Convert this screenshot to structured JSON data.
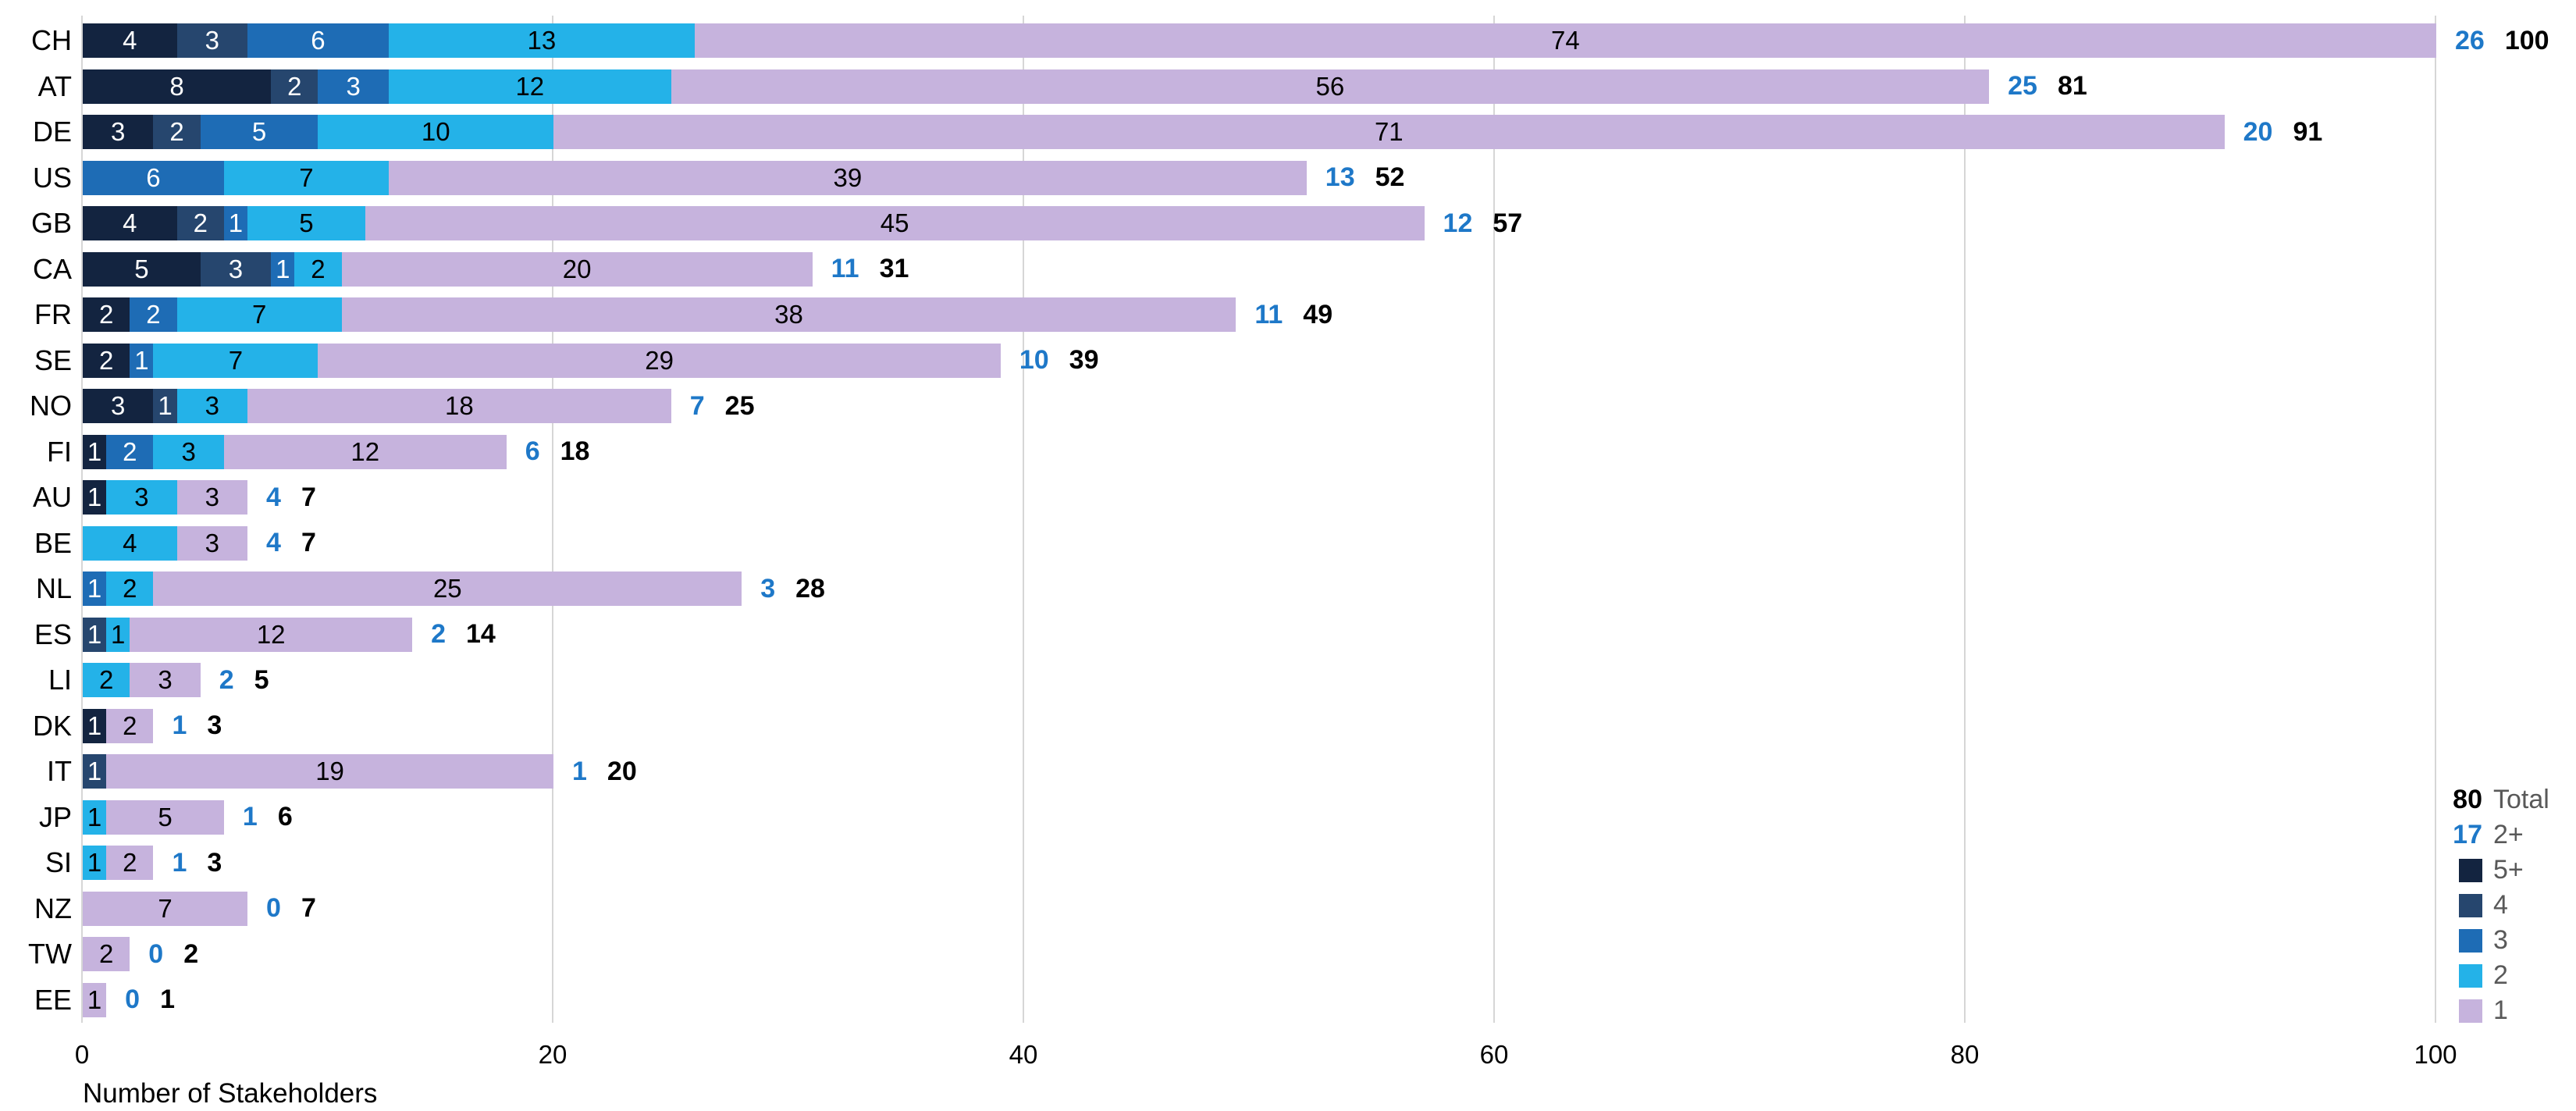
{
  "chart_data": {
    "type": "bar",
    "orientation": "horizontal",
    "stacked": true,
    "title": "",
    "xlabel": "Number of Stakeholders",
    "x_ticks": [
      0,
      20,
      40,
      60,
      80,
      100
    ],
    "xlim": [
      0,
      100
    ],
    "grid": "vertical",
    "legend_position": "bottom-right",
    "categories_order": [
      "5+",
      "4",
      "3",
      "2",
      "1"
    ],
    "colors": {
      "5+": "#132440",
      "4": "#26466E",
      "3": "#1E6CB5",
      "2": "#24B2E8",
      "1": "#C6B3DD",
      "two_plus_label": "#1E78C8",
      "total_label": "#000000",
      "legend_text": "#595959",
      "gridline": "#D6D6D6"
    },
    "segment_text_colors": {
      "5+": "#ffffff",
      "4": "#ffffff",
      "3": "#ffffff",
      "2": "#000000",
      "1": "#000000"
    },
    "rows": [
      {
        "label": "CH",
        "segments": [
          {
            "cat": "5+",
            "value": 4
          },
          {
            "cat": "4",
            "value": 3
          },
          {
            "cat": "3",
            "value": 6
          },
          {
            "cat": "2",
            "value": 13
          },
          {
            "cat": "1",
            "value": 74
          }
        ],
        "two_plus": 26,
        "total": 100
      },
      {
        "label": "AT",
        "segments": [
          {
            "cat": "5+",
            "value": 8
          },
          {
            "cat": "4",
            "value": 2
          },
          {
            "cat": "3",
            "value": 3
          },
          {
            "cat": "2",
            "value": 12
          },
          {
            "cat": "1",
            "value": 56
          }
        ],
        "two_plus": 25,
        "total": 81
      },
      {
        "label": "DE",
        "segments": [
          {
            "cat": "5+",
            "value": 3
          },
          {
            "cat": "4",
            "value": 2
          },
          {
            "cat": "3",
            "value": 5
          },
          {
            "cat": "2",
            "value": 10
          },
          {
            "cat": "1",
            "value": 71
          }
        ],
        "two_plus": 20,
        "total": 91
      },
      {
        "label": "US",
        "segments": [
          {
            "cat": "3",
            "value": 6
          },
          {
            "cat": "2",
            "value": 7
          },
          {
            "cat": "1",
            "value": 39
          }
        ],
        "two_plus": 13,
        "total": 52
      },
      {
        "label": "GB",
        "segments": [
          {
            "cat": "5+",
            "value": 4
          },
          {
            "cat": "4",
            "value": 2
          },
          {
            "cat": "3",
            "value": 1
          },
          {
            "cat": "2",
            "value": 5
          },
          {
            "cat": "1",
            "value": 45
          }
        ],
        "two_plus": 12,
        "total": 57
      },
      {
        "label": "CA",
        "segments": [
          {
            "cat": "5+",
            "value": 5
          },
          {
            "cat": "4",
            "value": 3
          },
          {
            "cat": "3",
            "value": 1
          },
          {
            "cat": "2",
            "value": 2
          },
          {
            "cat": "1",
            "value": 20
          }
        ],
        "two_plus": 11,
        "total": 31
      },
      {
        "label": "FR",
        "segments": [
          {
            "cat": "5+",
            "value": 2
          },
          {
            "cat": "3",
            "value": 2
          },
          {
            "cat": "2",
            "value": 7
          },
          {
            "cat": "1",
            "value": 38
          }
        ],
        "two_plus": 11,
        "total": 49
      },
      {
        "label": "SE",
        "segments": [
          {
            "cat": "5+",
            "value": 2
          },
          {
            "cat": "3",
            "value": 1
          },
          {
            "cat": "2",
            "value": 7
          },
          {
            "cat": "1",
            "value": 29
          }
        ],
        "two_plus": 10,
        "total": 39
      },
      {
        "label": "NO",
        "segments": [
          {
            "cat": "5+",
            "value": 3
          },
          {
            "cat": "4",
            "value": 1
          },
          {
            "cat": "2",
            "value": 3
          },
          {
            "cat": "1",
            "value": 18
          }
        ],
        "two_plus": 7,
        "total": 25
      },
      {
        "label": "FI",
        "segments": [
          {
            "cat": "5+",
            "value": 1
          },
          {
            "cat": "3",
            "value": 2
          },
          {
            "cat": "2",
            "value": 3
          },
          {
            "cat": "1",
            "value": 12
          }
        ],
        "two_plus": 6,
        "total": 18
      },
      {
        "label": "AU",
        "segments": [
          {
            "cat": "5+",
            "value": 1
          },
          {
            "cat": "2",
            "value": 3
          },
          {
            "cat": "1",
            "value": 3
          }
        ],
        "two_plus": 4,
        "total": 7
      },
      {
        "label": "BE",
        "segments": [
          {
            "cat": "2",
            "value": 4
          },
          {
            "cat": "1",
            "value": 3
          }
        ],
        "two_plus": 4,
        "total": 7
      },
      {
        "label": "NL",
        "segments": [
          {
            "cat": "3",
            "value": 1
          },
          {
            "cat": "2",
            "value": 2
          },
          {
            "cat": "1",
            "value": 25
          }
        ],
        "two_plus": 3,
        "total": 28
      },
      {
        "label": "ES",
        "segments": [
          {
            "cat": "4",
            "value": 1
          },
          {
            "cat": "2",
            "value": 1
          },
          {
            "cat": "1",
            "value": 12
          }
        ],
        "two_plus": 2,
        "total": 14
      },
      {
        "label": "LI",
        "segments": [
          {
            "cat": "2",
            "value": 2
          },
          {
            "cat": "1",
            "value": 3
          }
        ],
        "two_plus": 2,
        "total": 5
      },
      {
        "label": "DK",
        "segments": [
          {
            "cat": "5+",
            "value": 1
          },
          {
            "cat": "1",
            "value": 2
          }
        ],
        "two_plus": 1,
        "total": 3
      },
      {
        "label": "IT",
        "segments": [
          {
            "cat": "4",
            "value": 1
          },
          {
            "cat": "1",
            "value": 19
          }
        ],
        "two_plus": 1,
        "total": 20
      },
      {
        "label": "JP",
        "segments": [
          {
            "cat": "2",
            "value": 1
          },
          {
            "cat": "1",
            "value": 5
          }
        ],
        "two_plus": 1,
        "total": 6
      },
      {
        "label": "SI",
        "segments": [
          {
            "cat": "2",
            "value": 1
          },
          {
            "cat": "1",
            "value": 2
          }
        ],
        "two_plus": 1,
        "total": 3
      },
      {
        "label": "NZ",
        "segments": [
          {
            "cat": "1",
            "value": 7
          }
        ],
        "two_plus": 0,
        "total": 7
      },
      {
        "label": "TW",
        "segments": [
          {
            "cat": "1",
            "value": 2
          }
        ],
        "two_plus": 0,
        "total": 2
      },
      {
        "label": "EE",
        "segments": [
          {
            "cat": "1",
            "value": 1
          }
        ],
        "two_plus": 0,
        "total": 1
      }
    ],
    "legend": [
      {
        "kind": "value",
        "value": "80",
        "value_style": "total",
        "label": "Total"
      },
      {
        "kind": "value",
        "value": "17",
        "value_style": "two_plus",
        "label": "2+"
      },
      {
        "kind": "swatch",
        "cat": "5+",
        "label": "5+"
      },
      {
        "kind": "swatch",
        "cat": "4",
        "label": "4"
      },
      {
        "kind": "swatch",
        "cat": "3",
        "label": "3"
      },
      {
        "kind": "swatch",
        "cat": "2",
        "label": "2"
      },
      {
        "kind": "swatch",
        "cat": "1",
        "label": "1"
      }
    ]
  }
}
